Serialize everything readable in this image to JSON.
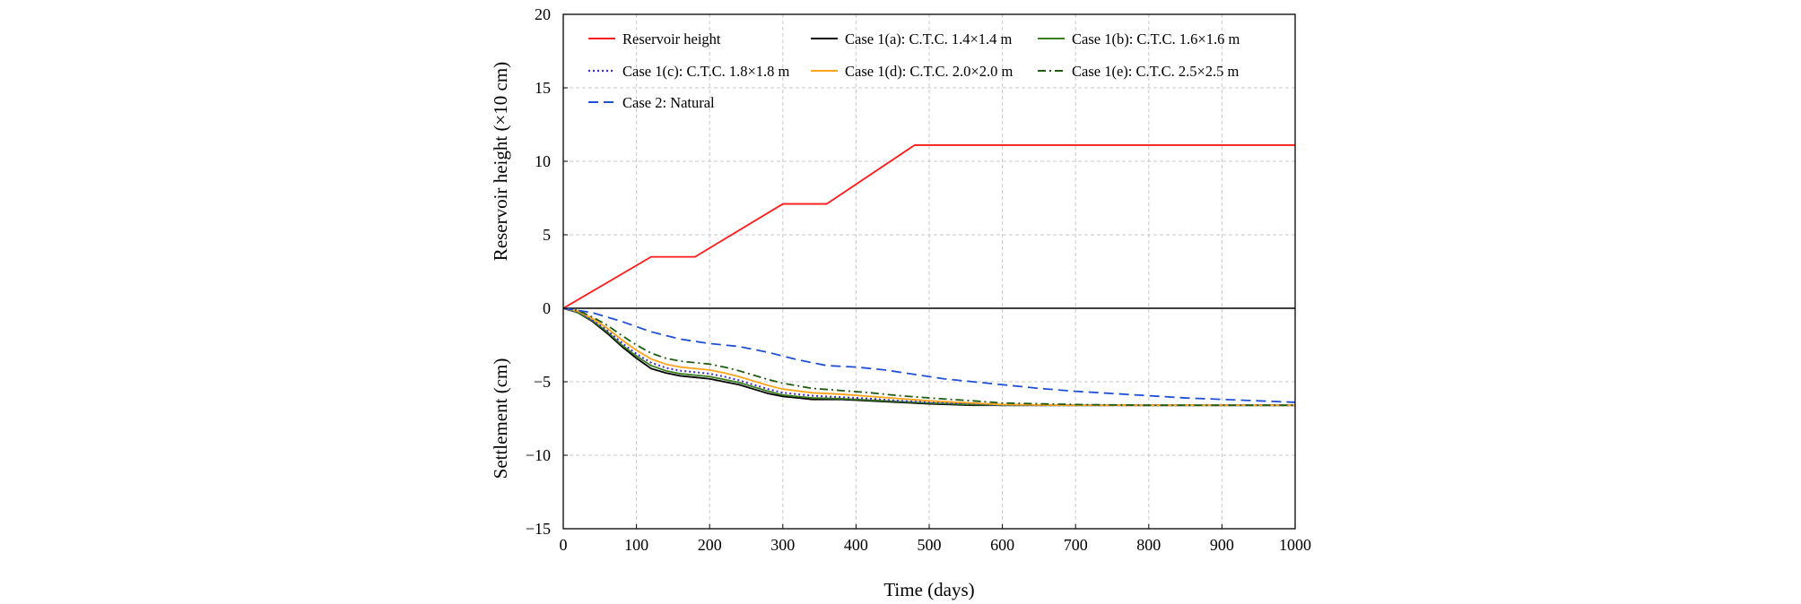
{
  "chart_data": {
    "type": "line",
    "xlabel": "Time (days)",
    "ylabel_top": "Reservoir height (×10 cm)",
    "ylabel_bottom": "Settlement (cm)",
    "xlim": [
      0,
      1000
    ],
    "ylim": [
      -15,
      20
    ],
    "x_ticks": [
      0,
      100,
      200,
      300,
      400,
      500,
      600,
      700,
      800,
      900,
      1000
    ],
    "y_ticks": [
      -15,
      -10,
      -5,
      0,
      5,
      10,
      15,
      20
    ],
    "y_tick_labels": [
      "−15",
      "−10",
      "−5",
      "0",
      "5",
      "10",
      "15",
      "20"
    ],
    "grid": true,
    "legend_position": "top",
    "series": [
      {
        "name": "Reservoir height",
        "color": "#ff1a1a",
        "dash": "solid",
        "x": [
          0,
          120,
          180,
          300,
          360,
          480,
          1000
        ],
        "y": [
          0,
          3.5,
          3.5,
          7.1,
          7.1,
          11.1,
          11.1
        ]
      },
      {
        "name": "Case 1(a): C.T.C. 1.4×1.4 m",
        "color": "#000000",
        "dash": "solid",
        "x": [
          0,
          20,
          40,
          60,
          80,
          100,
          120,
          140,
          160,
          180,
          200,
          220,
          240,
          260,
          280,
          300,
          340,
          380,
          420,
          460,
          500,
          560,
          600,
          700,
          800,
          900,
          1000
        ],
        "y": [
          0,
          -0.3,
          -0.9,
          -1.7,
          -2.6,
          -3.4,
          -4.1,
          -4.4,
          -4.6,
          -4.7,
          -4.8,
          -5.0,
          -5.2,
          -5.5,
          -5.8,
          -6.0,
          -6.2,
          -6.2,
          -6.3,
          -6.4,
          -6.5,
          -6.6,
          -6.6,
          -6.6,
          -6.6,
          -6.6,
          -6.6
        ]
      },
      {
        "name": "Case 1(b): C.T.C. 1.6×1.6 m",
        "color": "#3a7d1c",
        "dash": "solid",
        "x": [
          0,
          20,
          40,
          60,
          80,
          100,
          120,
          140,
          160,
          180,
          200,
          220,
          240,
          260,
          280,
          300,
          340,
          380,
          420,
          460,
          500,
          560,
          600,
          700,
          800,
          900,
          1000
        ],
        "y": [
          0,
          -0.3,
          -0.85,
          -1.6,
          -2.5,
          -3.25,
          -3.9,
          -4.25,
          -4.45,
          -4.55,
          -4.65,
          -4.85,
          -5.05,
          -5.35,
          -5.65,
          -5.9,
          -6.1,
          -6.15,
          -6.25,
          -6.35,
          -6.45,
          -6.55,
          -6.6,
          -6.6,
          -6.6,
          -6.6,
          -6.6
        ]
      },
      {
        "name": "Case 1(c): C.T.C. 1.8×1.8 m",
        "color": "#3b2bd6",
        "dash": "dotted",
        "x": [
          0,
          20,
          40,
          60,
          80,
          100,
          120,
          140,
          160,
          180,
          200,
          220,
          240,
          260,
          280,
          300,
          340,
          380,
          420,
          460,
          500,
          560,
          600,
          700,
          800,
          900,
          1000
        ],
        "y": [
          0,
          -0.25,
          -0.8,
          -1.5,
          -2.35,
          -3.1,
          -3.7,
          -4.05,
          -4.25,
          -4.35,
          -4.45,
          -4.65,
          -4.9,
          -5.2,
          -5.5,
          -5.75,
          -5.95,
          -6.05,
          -6.15,
          -6.3,
          -6.4,
          -6.5,
          -6.6,
          -6.6,
          -6.6,
          -6.6,
          -6.6
        ]
      },
      {
        "name": "Case 1(d): C.T.C. 2.0×2.0 m",
        "color": "#ffa31a",
        "dash": "solid",
        "x": [
          0,
          20,
          40,
          60,
          80,
          100,
          120,
          140,
          160,
          180,
          200,
          220,
          240,
          260,
          280,
          300,
          340,
          380,
          420,
          460,
          500,
          560,
          600,
          700,
          800,
          900,
          1000
        ],
        "y": [
          0,
          -0.2,
          -0.7,
          -1.35,
          -2.15,
          -2.85,
          -3.45,
          -3.8,
          -4.0,
          -4.1,
          -4.2,
          -4.4,
          -4.65,
          -4.95,
          -5.25,
          -5.5,
          -5.75,
          -5.85,
          -6.0,
          -6.15,
          -6.3,
          -6.45,
          -6.55,
          -6.6,
          -6.6,
          -6.6,
          -6.6
        ]
      },
      {
        "name": "Case 1(e): C.T.C. 2.5×2.5 m",
        "color": "#1f5c12",
        "dash": "dashdot",
        "x": [
          0,
          20,
          40,
          60,
          80,
          100,
          120,
          140,
          160,
          180,
          200,
          220,
          240,
          260,
          280,
          300,
          340,
          380,
          420,
          460,
          500,
          560,
          600,
          700,
          800,
          900,
          1000
        ],
        "y": [
          0,
          -0.15,
          -0.6,
          -1.15,
          -1.85,
          -2.5,
          -3.05,
          -3.4,
          -3.6,
          -3.7,
          -3.8,
          -4.0,
          -4.25,
          -4.55,
          -4.85,
          -5.1,
          -5.45,
          -5.6,
          -5.75,
          -5.95,
          -6.1,
          -6.3,
          -6.45,
          -6.55,
          -6.6,
          -6.6,
          -6.6
        ]
      },
      {
        "name": "Case 2: Natural",
        "color": "#1f4fd6",
        "dash": "dashed",
        "x": [
          0,
          40,
          80,
          120,
          160,
          200,
          240,
          280,
          320,
          360,
          400,
          440,
          480,
          520,
          560,
          600,
          650,
          700,
          750,
          800,
          850,
          900,
          950,
          1000
        ],
        "y": [
          0,
          -0.3,
          -0.9,
          -1.6,
          -2.1,
          -2.4,
          -2.6,
          -3.0,
          -3.5,
          -3.9,
          -4.0,
          -4.2,
          -4.5,
          -4.8,
          -5.0,
          -5.2,
          -5.45,
          -5.65,
          -5.8,
          -5.95,
          -6.1,
          -6.2,
          -6.3,
          -6.4
        ]
      }
    ]
  }
}
